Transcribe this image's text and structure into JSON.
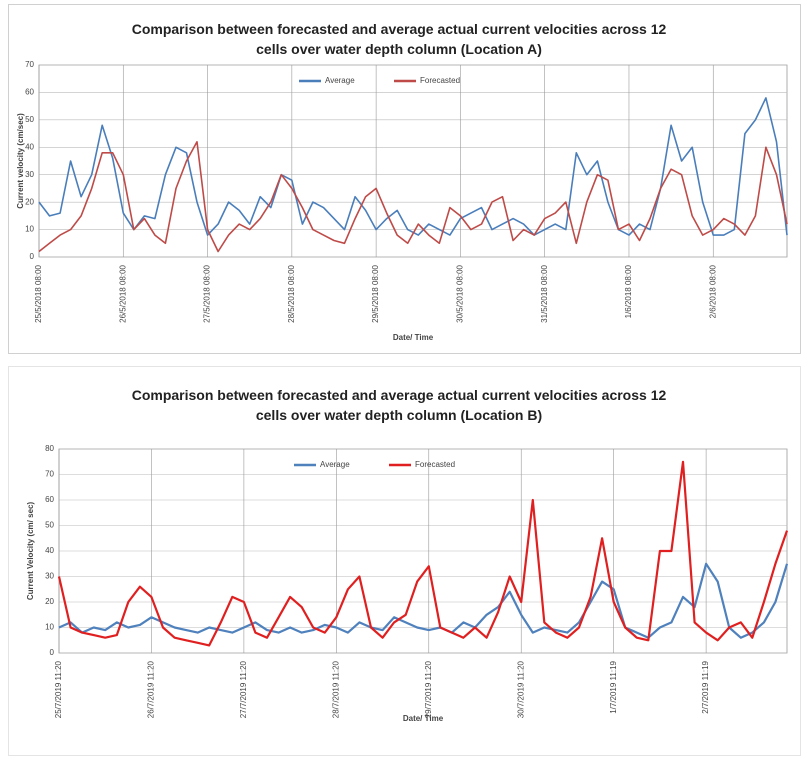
{
  "chart_data": [
    {
      "type": "line",
      "title": "Comparison between forecasted and average actual current velocities across 12 cells over water depth column  (Location A)",
      "x_label": "Date/ Time",
      "y_label": "Current velocity (cm/sec)",
      "categories": [
        "25/5/2018 08:00",
        null,
        null,
        null,
        null,
        null,
        null,
        null,
        "26/5/2018 08:00",
        null,
        null,
        null,
        null,
        null,
        null,
        null,
        "27/5/2018 08:00",
        null,
        null,
        null,
        null,
        null,
        null,
        null,
        "28/5/2018 08:00",
        null,
        null,
        null,
        null,
        null,
        null,
        null,
        "29/5/2018 08:00",
        null,
        null,
        null,
        null,
        null,
        null,
        null,
        "30/5/2018 08:00",
        null,
        null,
        null,
        null,
        null,
        null,
        null,
        "31/5/2018 08:00",
        null,
        null,
        null,
        null,
        null,
        null,
        null,
        "1/6/2018 08:00",
        null,
        null,
        null,
        null,
        null,
        null,
        null,
        "2/6/2018 08:00",
        null,
        null,
        null,
        null,
        null,
        null,
        null
      ],
      "series": [
        {
          "name": "Average",
          "color": "#4a7ebb",
          "values": [
            20,
            15,
            16,
            35,
            22,
            30,
            48,
            36,
            16,
            10,
            15,
            14,
            30,
            40,
            38,
            20,
            8,
            12,
            20,
            17,
            12,
            22,
            18,
            30,
            28,
            12,
            20,
            18,
            14,
            10,
            22,
            17,
            10,
            14,
            17,
            10,
            8,
            12,
            10,
            8,
            14,
            16,
            18,
            10,
            12,
            14,
            12,
            8,
            10,
            12,
            10,
            38,
            30,
            35,
            20,
            10,
            8,
            12,
            10,
            25,
            48,
            35,
            40,
            20,
            8,
            8,
            10,
            45,
            50,
            58,
            42,
            8
          ]
        },
        {
          "name": "Forecasted",
          "color": "#be4b48",
          "values": [
            2,
            5,
            8,
            10,
            15,
            25,
            38,
            38,
            30,
            10,
            14,
            8,
            5,
            25,
            35,
            42,
            10,
            2,
            8,
            12,
            10,
            14,
            20,
            30,
            25,
            18,
            10,
            8,
            6,
            5,
            14,
            22,
            25,
            16,
            8,
            5,
            12,
            8,
            5,
            18,
            15,
            10,
            12,
            20,
            22,
            6,
            10,
            8,
            14,
            16,
            20,
            5,
            20,
            30,
            28,
            10,
            12,
            6,
            14,
            25,
            32,
            30,
            15,
            8,
            10,
            14,
            12,
            8,
            15,
            40,
            30,
            12
          ]
        }
      ],
      "ylim": [
        0,
        70
      ],
      "yticks": [
        0,
        10,
        20,
        30,
        40,
        50,
        60,
        70
      ],
      "grid": true,
      "legend": "top"
    },
    {
      "type": "line",
      "title": "Comparison between forecasted and average actual current velocities across 12 cells over water depth column  (Location B)",
      "x_label": "Date/ Time",
      "y_label": "Current Velocity (cm/ sec)",
      "categories": [
        "25/7/2019 11:20",
        null,
        null,
        null,
        null,
        null,
        null,
        null,
        "26/7/2019 11:20",
        null,
        null,
        null,
        null,
        null,
        null,
        null,
        "27/7/2019 11:20",
        null,
        null,
        null,
        null,
        null,
        null,
        null,
        "28/7/2019 11:20",
        null,
        null,
        null,
        null,
        null,
        null,
        null,
        "29/7/2019 11:20",
        null,
        null,
        null,
        null,
        null,
        null,
        null,
        "30/7/2019 11:20",
        null,
        null,
        null,
        null,
        null,
        null,
        null,
        "1/7/2019 11:19",
        null,
        null,
        null,
        null,
        null,
        null,
        null,
        "2/7/2019 11:19",
        null,
        null,
        null,
        null,
        null,
        null,
        null
      ],
      "series": [
        {
          "name": "Average",
          "color": "#4f81bd",
          "values": [
            10,
            12,
            8,
            10,
            9,
            12,
            10,
            11,
            14,
            12,
            10,
            9,
            8,
            10,
            9,
            8,
            10,
            12,
            9,
            8,
            10,
            8,
            9,
            11,
            10,
            8,
            12,
            10,
            9,
            14,
            12,
            10,
            9,
            10,
            8,
            12,
            10,
            15,
            18,
            24,
            15,
            8,
            10,
            9,
            8,
            12,
            20,
            28,
            25,
            10,
            8,
            6,
            10,
            12,
            22,
            18,
            35,
            28,
            10,
            6,
            8,
            12,
            20,
            35
          ]
        },
        {
          "name": "Forecasted",
          "color": "#e02020",
          "values": [
            30,
            10,
            8,
            7,
            6,
            7,
            20,
            26,
            22,
            10,
            6,
            5,
            4,
            3,
            12,
            22,
            20,
            8,
            6,
            14,
            22,
            18,
            10,
            8,
            14,
            25,
            30,
            10,
            6,
            12,
            15,
            28,
            34,
            10,
            8,
            6,
            10,
            6,
            16,
            30,
            20,
            60,
            12,
            8,
            6,
            10,
            22,
            45,
            20,
            10,
            6,
            5,
            40,
            40,
            75,
            12,
            8,
            5,
            10,
            12,
            6,
            20,
            35,
            48
          ]
        }
      ],
      "ylim": [
        0,
        80
      ],
      "yticks": [
        0,
        10,
        20,
        30,
        40,
        50,
        60,
        70,
        80
      ],
      "grid": true,
      "legend": "top"
    }
  ]
}
